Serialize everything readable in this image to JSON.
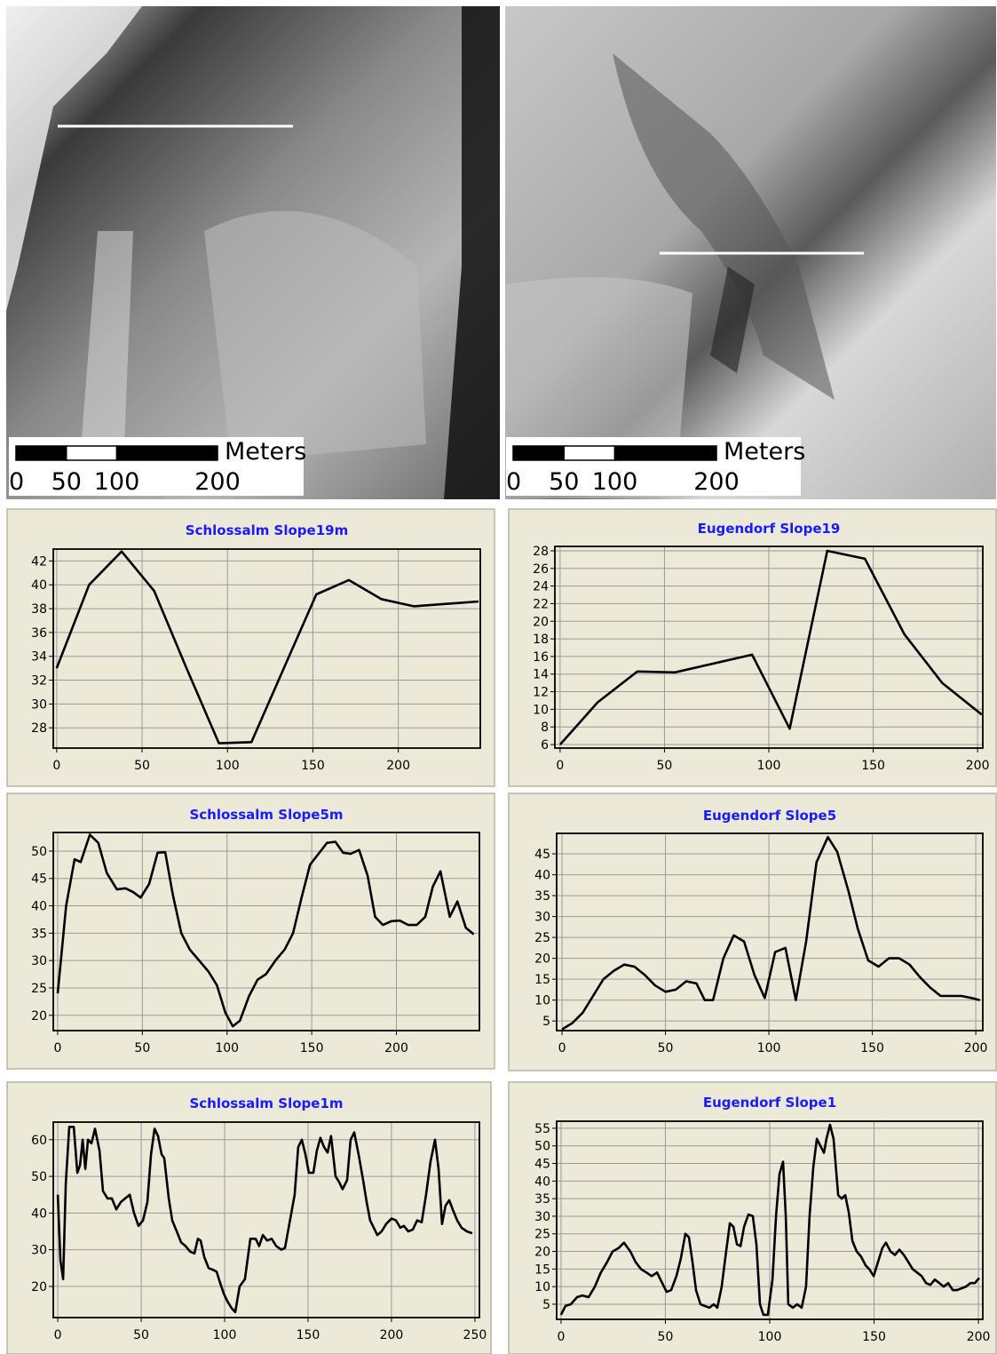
{
  "maps": [
    {
      "scale_unit": "Meters",
      "scale_ticks": [
        0,
        50,
        100,
        200
      ]
    },
    {
      "scale_unit": "Meters",
      "scale_ticks": [
        0,
        50,
        100,
        200
      ]
    }
  ],
  "chart_data": [
    {
      "type": "line",
      "title": "Schlossalm Slope19m",
      "color": "#000000",
      "grid": true,
      "x": [
        0,
        19,
        38,
        57,
        76,
        95,
        114,
        133,
        152,
        171,
        190,
        209,
        247
      ],
      "values": [
        33,
        40,
        42.8,
        39.5,
        33,
        26.7,
        26.8,
        33,
        39.2,
        40.4,
        38.8,
        38.2,
        38.6
      ],
      "xlim": [
        -2,
        248
      ],
      "ylim": [
        26.3,
        43
      ],
      "xticks": [
        0,
        50,
        100,
        150,
        200
      ],
      "yticks": [
        28,
        30,
        32,
        34,
        36,
        38,
        40,
        42
      ]
    },
    {
      "type": "line",
      "title": "Eugendorf Slope19",
      "color": "#000000",
      "grid": true,
      "x": [
        0,
        18,
        37,
        55,
        92,
        110,
        128,
        146,
        165,
        183,
        202
      ],
      "values": [
        6,
        10.8,
        14.3,
        14.2,
        16.2,
        7.8,
        28,
        27.1,
        18.5,
        13,
        9.4
      ],
      "xlim": [
        -2.5,
        202.5
      ],
      "ylim": [
        5.6,
        28.5
      ],
      "xticks": [
        0,
        50,
        100,
        150,
        200
      ],
      "yticks": [
        6,
        8,
        10,
        12,
        14,
        16,
        18,
        20,
        22,
        24,
        26,
        28
      ]
    },
    {
      "type": "line",
      "title": "Schlossalm Slope5m",
      "color": "#000000",
      "grid": true,
      "x": [
        0,
        5,
        10,
        13.6,
        19,
        24,
        29,
        35,
        40,
        44.6,
        49,
        54,
        59,
        63.5,
        68,
        73,
        78,
        83.5,
        89,
        94,
        99,
        103.4,
        107.6,
        113,
        118,
        123,
        128.6,
        134,
        139,
        144,
        149,
        154,
        159,
        164,
        168.5,
        173,
        178,
        183,
        187.4,
        192,
        197,
        202,
        207,
        212,
        217,
        221.5,
        226,
        231.5,
        236,
        241,
        245.7
      ],
      "values": [
        24,
        40,
        48.5,
        48,
        53,
        51.5,
        46,
        43,
        43.2,
        42.5,
        41.5,
        44,
        49.7,
        49.8,
        42,
        35,
        32,
        30,
        28,
        25.5,
        20.5,
        18,
        19,
        23.5,
        26.5,
        27.5,
        30,
        32,
        35,
        41.5,
        47.5,
        49.5,
        51.5,
        51.7,
        49.7,
        49.5,
        50.2,
        45.5,
        38,
        36.5,
        37.2,
        37.3,
        36.5,
        36.5,
        38,
        43.5,
        46.3,
        38,
        40.8,
        36,
        34.8
      ],
      "xlim": [
        -2.6,
        249
      ],
      "ylim": [
        17.2,
        53.4
      ],
      "xticks": [
        0,
        50,
        100,
        150,
        200
      ],
      "yticks": [
        20,
        25,
        30,
        35,
        40,
        45,
        50
      ]
    },
    {
      "type": "line",
      "title": "Eugendorf Slope5",
      "color": "#000000",
      "grid": true,
      "x": [
        0,
        5,
        10,
        15,
        20,
        25,
        30,
        35,
        40,
        45,
        50,
        55,
        60,
        65,
        69,
        73,
        78,
        83,
        88,
        93,
        98,
        103,
        108,
        113,
        118,
        123,
        128.5,
        133,
        138.5,
        143,
        148,
        153,
        158,
        163,
        168,
        173,
        178,
        183,
        187.5,
        193,
        198,
        202
      ],
      "values": [
        3,
        4.5,
        7,
        11,
        15,
        17,
        18.5,
        18,
        16,
        13.5,
        12,
        12.5,
        14.5,
        14,
        10,
        10,
        20,
        25.5,
        24,
        16,
        10.5,
        21.5,
        22.5,
        10,
        24,
        43,
        49,
        45.5,
        36,
        27,
        19.5,
        18,
        20,
        20,
        18.5,
        15.5,
        13,
        11,
        11,
        11,
        10.5,
        10
      ],
      "xlim": [
        -2.6,
        203.4
      ],
      "ylim": [
        2.7,
        49.9
      ],
      "xticks": [
        0,
        50,
        100,
        150,
        200
      ],
      "yticks": [
        5,
        10,
        15,
        20,
        25,
        30,
        35,
        40,
        45
      ]
    },
    {
      "type": "line",
      "title": "Schlossalm Slope1m",
      "color": "#000000",
      "grid": true,
      "x": [
        0,
        1.6,
        3.2,
        4.8,
        6.9,
        9.6,
        11.7,
        13.3,
        14.9,
        16.5,
        18.1,
        20.2,
        22.3,
        25,
        27.1,
        29.8,
        32.4,
        35.1,
        37.8,
        40.4,
        43.1,
        45.7,
        48.4,
        51.1,
        53.7,
        55.9,
        58,
        60.1,
        62.2,
        63.8,
        66.5,
        68.6,
        71.3,
        73.9,
        76.6,
        79.3,
        81.9,
        84,
        85.6,
        87.8,
        90.4,
        93.1,
        95.2,
        97.3,
        99.5,
        101.6,
        104.3,
        106.4,
        109,
        112.2,
        115.4,
        118.6,
        120.7,
        122.9,
        125.5,
        128.2,
        130.9,
        134,
        136.2,
        138.8,
        142,
        144.1,
        146.3,
        148.4,
        150.5,
        153.2,
        155.3,
        157.4,
        159.6,
        161.7,
        163.8,
        166.5,
        168.6,
        170.7,
        173.4,
        175.5,
        177.7,
        180.3,
        183,
        185.1,
        187.2,
        189.4,
        191.5,
        194.1,
        196.8,
        200,
        202.7,
        205.3,
        207.4,
        210.1,
        212.8,
        215.4,
        218.1,
        220.7,
        223.4,
        226.1,
        228.2,
        230.3,
        232.4,
        234.6,
        236.7,
        239.4,
        242,
        245.2,
        248.4
      ],
      "values": [
        45,
        27,
        22,
        48,
        63.5,
        63.5,
        51,
        53,
        60,
        52,
        60,
        59,
        63,
        57,
        46,
        44,
        44,
        41,
        43,
        44,
        45,
        40,
        36.5,
        38,
        43,
        56,
        63,
        61,
        56,
        55,
        44,
        38,
        35,
        32,
        31,
        29.5,
        29,
        33,
        32.5,
        28,
        25,
        24.5,
        24,
        21,
        18,
        16,
        14,
        13,
        20,
        22,
        33,
        33,
        31,
        34,
        32.5,
        33,
        31,
        30,
        30.5,
        37,
        45,
        58,
        60,
        56,
        51,
        51,
        57,
        60.5,
        58,
        56.5,
        61,
        50,
        48.5,
        46.5,
        49,
        60,
        62,
        56,
        49,
        43,
        38,
        36,
        34,
        35,
        37,
        38.5,
        38,
        36,
        36.5,
        35,
        35.5,
        38,
        37.5,
        45,
        54,
        60,
        52,
        37,
        42,
        43.5,
        41,
        38,
        36,
        35,
        34.5
      ],
      "xlim": [
        -2.7,
        252.7
      ],
      "ylim": [
        11.5,
        64.8
      ],
      "xticks": [
        0,
        50,
        100,
        150,
        200,
        250
      ],
      "yticks": [
        20,
        30,
        40,
        50,
        60
      ]
    },
    {
      "type": "line",
      "title": "Eugendorf Slope1",
      "color": "#000000",
      "grid": true,
      "x": [
        0,
        2.1,
        4.7,
        7.7,
        10.2,
        13.2,
        16.2,
        19.1,
        22.1,
        24.7,
        27.7,
        30.2,
        33.2,
        35.7,
        38.3,
        40.9,
        43.4,
        46,
        48.5,
        50.6,
        52.8,
        55.3,
        57.4,
        59.6,
        61.3,
        63,
        64.7,
        66.8,
        68.9,
        71.1,
        73.2,
        74.9,
        77,
        79.1,
        80.9,
        82.6,
        84.3,
        86,
        87.7,
        89.8,
        91.9,
        93.6,
        95.3,
        97,
        99.1,
        101.3,
        103,
        104.7,
        106.4,
        107.7,
        108.9,
        111.1,
        113.2,
        115.3,
        117.4,
        119.1,
        120.9,
        122.6,
        124.3,
        126,
        127.2,
        128.9,
        130.6,
        132.8,
        134.5,
        136.2,
        137.9,
        139.6,
        141.7,
        143.8,
        146,
        147.7,
        149.8,
        151.9,
        154,
        155.7,
        157.9,
        160,
        162.1,
        164.3,
        166.4,
        168.5,
        170.6,
        172.8,
        174.9,
        177,
        179.1,
        181.3,
        183.4,
        185.5,
        187.7,
        189.8,
        191.9,
        194,
        196.2,
        198.3,
        200.4
      ],
      "values": [
        2,
        4.5,
        5,
        7,
        7.5,
        7,
        10,
        14,
        17,
        20,
        21,
        22.5,
        20,
        17,
        15,
        14,
        13,
        14,
        11,
        8.5,
        9,
        13,
        18,
        25,
        24,
        17,
        9,
        5,
        4.5,
        4,
        5,
        4,
        10,
        20,
        28,
        27,
        22,
        21.5,
        27,
        30.5,
        30,
        22,
        5,
        2,
        2,
        12,
        30,
        42,
        45.5,
        30,
        5,
        4,
        5,
        4,
        10,
        30,
        44,
        52,
        50,
        48,
        52,
        56,
        52,
        36,
        35,
        36,
        31,
        23,
        20,
        18.5,
        16,
        15,
        13,
        17,
        21,
        22.5,
        20,
        19,
        20.5,
        19,
        17,
        15,
        14,
        13,
        11,
        10.5,
        12,
        11,
        10,
        11,
        9,
        9,
        9.5,
        10,
        11,
        11,
        12.5
      ],
      "xlim": [
        -2.1,
        202.1
      ],
      "ylim": [
        0.7,
        57
      ],
      "xticks": [
        0,
        50,
        100,
        150,
        200
      ],
      "yticks": [
        5,
        10,
        15,
        20,
        25,
        30,
        35,
        40,
        45,
        50,
        55
      ]
    }
  ]
}
